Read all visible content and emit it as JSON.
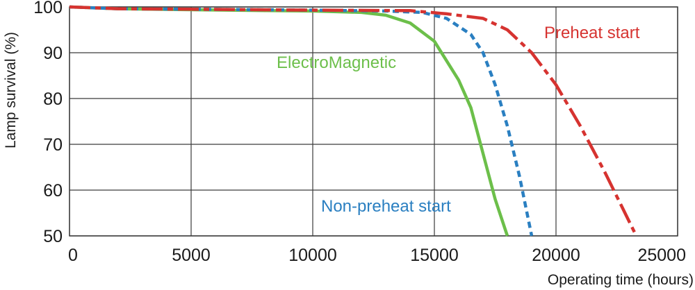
{
  "chart_data": {
    "type": "line",
    "title": "",
    "xlabel": "Operating time (hours)",
    "ylabel": "Lamp survival  (%)",
    "xlim": [
      0,
      25000
    ],
    "ylim": [
      50,
      100
    ],
    "xticks": [
      0,
      5000,
      10000,
      15000,
      20000,
      25000
    ],
    "yticks": [
      50,
      60,
      70,
      80,
      90,
      100
    ],
    "grid": true,
    "legend": "none",
    "series": [
      {
        "name": "ElectroMagnetic",
        "color": "#6cbf4a",
        "dash": "solid",
        "points": [
          [
            0,
            100
          ],
          [
            2000,
            99.6
          ],
          [
            5000,
            99.4
          ],
          [
            8000,
            99.2
          ],
          [
            10000,
            99.1
          ],
          [
            12000,
            98.8
          ],
          [
            13000,
            98.2
          ],
          [
            14000,
            96.5
          ],
          [
            15000,
            92.5
          ],
          [
            16000,
            84
          ],
          [
            16500,
            78
          ],
          [
            17000,
            68
          ],
          [
            17500,
            58
          ],
          [
            18000,
            50
          ]
        ]
      },
      {
        "name": "Non-preheat start",
        "color": "#2a7fc1",
        "dash": "dashed",
        "points": [
          [
            0,
            100
          ],
          [
            2000,
            99.6
          ],
          [
            5000,
            99.5
          ],
          [
            10000,
            99.3
          ],
          [
            13000,
            99.1
          ],
          [
            14500,
            98.8
          ],
          [
            15500,
            97.5
          ],
          [
            16500,
            94
          ],
          [
            17000,
            90
          ],
          [
            17500,
            83
          ],
          [
            18000,
            74
          ],
          [
            18500,
            63
          ],
          [
            19000,
            50
          ]
        ]
      },
      {
        "name": "Preheat start",
        "color": "#d63330",
        "dash": "dashdot",
        "points": [
          [
            0,
            100
          ],
          [
            2000,
            99.6
          ],
          [
            5000,
            99.5
          ],
          [
            10000,
            99.3
          ],
          [
            14000,
            99.2
          ],
          [
            15500,
            98.5
          ],
          [
            17000,
            97.5
          ],
          [
            18000,
            95
          ],
          [
            19000,
            90
          ],
          [
            20000,
            83
          ],
          [
            21000,
            74
          ],
          [
            22000,
            64
          ],
          [
            23300,
            50
          ]
        ]
      }
    ],
    "labels": {
      "electromagnetic": "ElectroMagnetic",
      "non_preheat": "Non-preheat start",
      "preheat": "Preheat start"
    }
  }
}
